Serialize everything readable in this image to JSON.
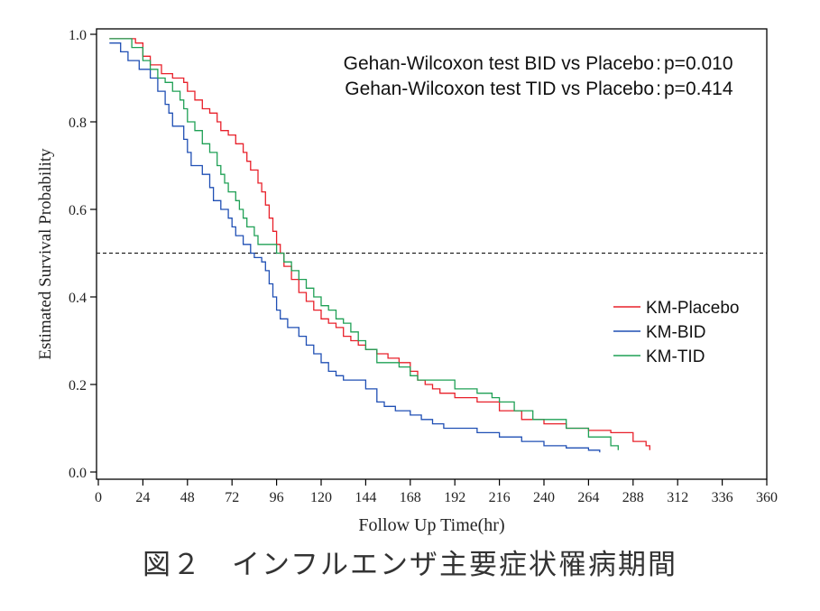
{
  "caption": "図２　インフルエンザ主要症状罹病期間",
  "chart_data": {
    "type": "line",
    "step": true,
    "xlabel": "Follow Up Time(hr)",
    "ylabel": "Estimated Survival Probability",
    "xlim": [
      0,
      360
    ],
    "ylim": [
      0,
      1.0
    ],
    "xticks": [
      0,
      24,
      48,
      72,
      96,
      120,
      144,
      168,
      192,
      216,
      240,
      264,
      288,
      312,
      336,
      360
    ],
    "yticks": [
      0.0,
      0.2,
      0.4,
      0.6,
      0.8,
      1.0
    ],
    "ytick_labels": [
      "0.0",
      "0.2",
      "0.4",
      "0.6",
      "0.8",
      "1.0"
    ],
    "grid": false,
    "reference_line": {
      "y": 0.5,
      "style": "dashed"
    },
    "annotations": [
      {
        "label": "Gehan-Wilcoxon test BID vs Placebo",
        "value": "p=0.010"
      },
      {
        "label": "Gehan-Wilcoxon test TID vs Placebo",
        "value": "p=0.414"
      }
    ],
    "legend_position": "right",
    "series": [
      {
        "name": "KM-Placebo",
        "color": "#e8202a",
        "points": [
          [
            6,
            0.99
          ],
          [
            20,
            0.98
          ],
          [
            24,
            0.95
          ],
          [
            28,
            0.93
          ],
          [
            34,
            0.91
          ],
          [
            40,
            0.9
          ],
          [
            46,
            0.89
          ],
          [
            48,
            0.87
          ],
          [
            52,
            0.85
          ],
          [
            56,
            0.83
          ],
          [
            60,
            0.82
          ],
          [
            64,
            0.8
          ],
          [
            66,
            0.78
          ],
          [
            70,
            0.77
          ],
          [
            74,
            0.75
          ],
          [
            78,
            0.73
          ],
          [
            80,
            0.71
          ],
          [
            82,
            0.69
          ],
          [
            86,
            0.66
          ],
          [
            88,
            0.64
          ],
          [
            90,
            0.61
          ],
          [
            92,
            0.58
          ],
          [
            94,
            0.55
          ],
          [
            96,
            0.52
          ],
          [
            98,
            0.5
          ],
          [
            100,
            0.47
          ],
          [
            104,
            0.44
          ],
          [
            108,
            0.41
          ],
          [
            112,
            0.39
          ],
          [
            116,
            0.37
          ],
          [
            120,
            0.35
          ],
          [
            124,
            0.34
          ],
          [
            128,
            0.33
          ],
          [
            132,
            0.31
          ],
          [
            136,
            0.3
          ],
          [
            140,
            0.29
          ],
          [
            144,
            0.28
          ],
          [
            150,
            0.27
          ],
          [
            156,
            0.26
          ],
          [
            162,
            0.25
          ],
          [
            168,
            0.23
          ],
          [
            172,
            0.21
          ],
          [
            176,
            0.2
          ],
          [
            180,
            0.19
          ],
          [
            184,
            0.18
          ],
          [
            192,
            0.17
          ],
          [
            204,
            0.16
          ],
          [
            216,
            0.14
          ],
          [
            228,
            0.12
          ],
          [
            240,
            0.11
          ],
          [
            252,
            0.1
          ],
          [
            264,
            0.095
          ],
          [
            276,
            0.09
          ],
          [
            288,
            0.07
          ],
          [
            295,
            0.06
          ],
          [
            297,
            0.05
          ]
        ]
      },
      {
        "name": "KM-BID",
        "color": "#1f4fb4",
        "points": [
          [
            6,
            0.98
          ],
          [
            12,
            0.96
          ],
          [
            16,
            0.94
          ],
          [
            22,
            0.92
          ],
          [
            28,
            0.9
          ],
          [
            32,
            0.87
          ],
          [
            36,
            0.84
          ],
          [
            38,
            0.82
          ],
          [
            40,
            0.79
          ],
          [
            46,
            0.76
          ],
          [
            48,
            0.73
          ],
          [
            50,
            0.7
          ],
          [
            56,
            0.68
          ],
          [
            60,
            0.65
          ],
          [
            62,
            0.62
          ],
          [
            66,
            0.6
          ],
          [
            70,
            0.58
          ],
          [
            72,
            0.56
          ],
          [
            74,
            0.54
          ],
          [
            78,
            0.52
          ],
          [
            82,
            0.5
          ],
          [
            84,
            0.49
          ],
          [
            88,
            0.48
          ],
          [
            90,
            0.46
          ],
          [
            92,
            0.43
          ],
          [
            94,
            0.4
          ],
          [
            96,
            0.37
          ],
          [
            98,
            0.35
          ],
          [
            102,
            0.33
          ],
          [
            108,
            0.31
          ],
          [
            112,
            0.29
          ],
          [
            116,
            0.27
          ],
          [
            120,
            0.25
          ],
          [
            124,
            0.23
          ],
          [
            128,
            0.22
          ],
          [
            132,
            0.21
          ],
          [
            144,
            0.19
          ],
          [
            150,
            0.16
          ],
          [
            154,
            0.15
          ],
          [
            160,
            0.14
          ],
          [
            168,
            0.13
          ],
          [
            174,
            0.12
          ],
          [
            180,
            0.11
          ],
          [
            186,
            0.1
          ],
          [
            204,
            0.09
          ],
          [
            216,
            0.08
          ],
          [
            228,
            0.07
          ],
          [
            240,
            0.06
          ],
          [
            252,
            0.055
          ],
          [
            264,
            0.05
          ],
          [
            270,
            0.045
          ]
        ]
      },
      {
        "name": "KM-TID",
        "color": "#1fa055",
        "points": [
          [
            6,
            0.99
          ],
          [
            18,
            0.97
          ],
          [
            24,
            0.94
          ],
          [
            28,
            0.92
          ],
          [
            32,
            0.9
          ],
          [
            36,
            0.89
          ],
          [
            40,
            0.87
          ],
          [
            44,
            0.85
          ],
          [
            46,
            0.83
          ],
          [
            48,
            0.8
          ],
          [
            52,
            0.78
          ],
          [
            56,
            0.75
          ],
          [
            60,
            0.73
          ],
          [
            64,
            0.7
          ],
          [
            66,
            0.68
          ],
          [
            68,
            0.66
          ],
          [
            70,
            0.64
          ],
          [
            74,
            0.62
          ],
          [
            76,
            0.6
          ],
          [
            78,
            0.58
          ],
          [
            80,
            0.56
          ],
          [
            84,
            0.54
          ],
          [
            86,
            0.52
          ],
          [
            96,
            0.5
          ],
          [
            100,
            0.48
          ],
          [
            104,
            0.46
          ],
          [
            108,
            0.44
          ],
          [
            112,
            0.42
          ],
          [
            116,
            0.4
          ],
          [
            120,
            0.38
          ],
          [
            124,
            0.37
          ],
          [
            128,
            0.35
          ],
          [
            132,
            0.34
          ],
          [
            136,
            0.32
          ],
          [
            140,
            0.3
          ],
          [
            144,
            0.28
          ],
          [
            150,
            0.25
          ],
          [
            162,
            0.24
          ],
          [
            168,
            0.22
          ],
          [
            172,
            0.21
          ],
          [
            192,
            0.19
          ],
          [
            204,
            0.18
          ],
          [
            212,
            0.17
          ],
          [
            216,
            0.16
          ],
          [
            224,
            0.14
          ],
          [
            234,
            0.12
          ],
          [
            252,
            0.1
          ],
          [
            264,
            0.08
          ],
          [
            276,
            0.06
          ],
          [
            280,
            0.05
          ]
        ]
      }
    ]
  }
}
